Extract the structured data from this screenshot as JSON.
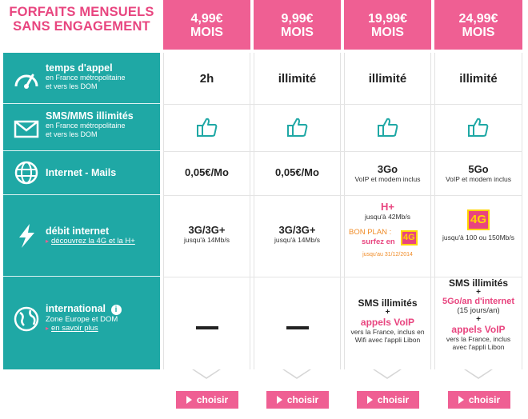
{
  "header": {
    "title_line1": "FORFAITS MENSUELS",
    "title_line2": "SANS ENGAGEMENT"
  },
  "plans": [
    {
      "price": "4,99€",
      "period": "MOIS"
    },
    {
      "price": "9,99€",
      "period": "MOIS"
    },
    {
      "price": "19,99€",
      "period": "MOIS"
    },
    {
      "price": "24,99€",
      "period": "MOIS"
    }
  ],
  "rows": {
    "appel": {
      "title": "temps d'appel",
      "sub1": "en France métropolitaine",
      "sub2": "et vers les DOM",
      "icon": "speedometer-icon"
    },
    "sms": {
      "title": "SMS/MMS illimités",
      "sub1": "en France métropolitaine",
      "sub2": "et vers les DOM",
      "icon": "envelope-icon"
    },
    "internet": {
      "title": "Internet - Mails",
      "icon": "globe-at-icon"
    },
    "debit": {
      "title": "débit internet",
      "link": "découvrez la 4G et la H+",
      "icon": "lightning-icon"
    },
    "international": {
      "title": "international",
      "sub1": "Zone Europe et DOM",
      "link": "en savoir plus",
      "icon": "world-icon",
      "info_icon": "info-icon"
    }
  },
  "cells": {
    "appel": [
      "2h",
      "illimité",
      "illimité",
      "illimité"
    ],
    "sms_icon": "thumbs-up-icon",
    "internet": {
      "p1": "0,05€/Mo",
      "p2": "0,05€/Mo",
      "p3_main": "3Go",
      "p3_sub": "VoIP et modem inclus",
      "p4_main": "5Go",
      "p4_sub": "VoIP et modem inclus"
    },
    "debit": {
      "p1_main": "3G/3G+",
      "p1_sub": "jusqu'à 14Mb/s",
      "p2_main": "3G/3G+",
      "p2_sub": "jusqu'à 14Mb/s",
      "p3_main": "H+",
      "p3_sub": "jusqu'à 42Mb/s",
      "p3_bonplan": "BON PLAN :",
      "p3_surfez": "surfez en",
      "p3_badge": "4G",
      "p3_date": "jusqu'au 31/12/2014",
      "p4_badge": "4G",
      "p4_sub": "jusqu'à 100 ou 150Mb/s"
    },
    "international": {
      "p3_sms": "SMS illimités",
      "p3_plus": "+",
      "p3_voip": "appels VoIP",
      "p3_note1": "vers la France, inclus en",
      "p3_note2": "Wifi avec l'appli Libon",
      "p4_sms": "SMS illimités",
      "p4_plus1": "+",
      "p4_data": "5Go/an d'internet",
      "p4_days": "(15 jours/an)",
      "p4_plus2": "+",
      "p4_voip": "appels VoIP",
      "p4_note1": "vers la France, inclus",
      "p4_note2": "avec l'appli Libon"
    }
  },
  "cta": {
    "label": "choisir"
  },
  "colors": {
    "pink": "#ef5f93",
    "teal": "#1fa8a5",
    "yellow": "#ffd400"
  }
}
